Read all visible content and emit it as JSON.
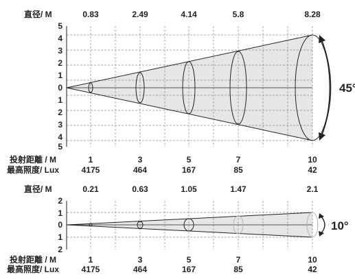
{
  "colors": {
    "beam_fill": "#e6e6e6",
    "ink": "#222222",
    "grid": "#8a8a8a",
    "faded_ellipse": "#b0b0b0"
  },
  "diagrams": [
    {
      "angle_label": "45°",
      "diameter_label": "直径/ M",
      "diameters": [
        "0.83",
        "2.49",
        "4.14",
        "5.8",
        "8.28"
      ],
      "y_ticks": [
        "5",
        "4",
        "3",
        "2",
        "1",
        "0",
        "1",
        "2",
        "3",
        "4",
        "5"
      ],
      "distance_label": "投射距離 / M",
      "distances": [
        "1",
        "3",
        "5",
        "7",
        "10"
      ],
      "lux_label": "最高照度/ Lux",
      "lux": [
        "4175",
        "464",
        "167",
        "85",
        "42"
      ]
    },
    {
      "angle_label": "10°",
      "diameter_label": "直径/ M",
      "diameters": [
        "0.21",
        "0.63",
        "1.05",
        "1.47",
        "2.1"
      ],
      "y_ticks": [
        "2",
        "1",
        "0",
        "1",
        "2"
      ],
      "distance_label": "投射距離 / M",
      "distances": [
        "1",
        "3",
        "5",
        "7",
        "10"
      ],
      "lux_label": "最高照度/ Lux",
      "lux": [
        "4175",
        "464",
        "167",
        "85",
        "42"
      ]
    }
  ]
}
